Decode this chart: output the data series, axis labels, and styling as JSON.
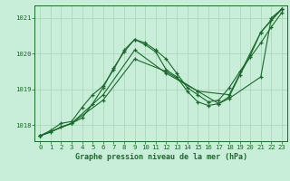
{
  "title": "Graphe pression niveau de la mer (hPa)",
  "background_color": "#c8edd8",
  "grid_color": "#a8d4b8",
  "line_color": "#1a6b2a",
  "xlim": [
    -0.5,
    23.5
  ],
  "ylim": [
    1017.55,
    1021.35
  ],
  "yticks": [
    1018,
    1019,
    1020,
    1021
  ],
  "xticks": [
    0,
    1,
    2,
    3,
    4,
    5,
    6,
    7,
    8,
    9,
    10,
    11,
    12,
    13,
    14,
    15,
    16,
    17,
    18,
    19,
    20,
    21,
    22,
    23
  ],
  "lines": [
    {
      "x": [
        0,
        1,
        2,
        3,
        4,
        5,
        6,
        7,
        8,
        9,
        10,
        11,
        12,
        13,
        14,
        15,
        16,
        17,
        18,
        19,
        20,
        21,
        22,
        23
      ],
      "y": [
        1017.7,
        1017.85,
        1018.05,
        1018.1,
        1018.5,
        1018.85,
        1019.1,
        1019.55,
        1020.1,
        1020.4,
        1020.25,
        1020.05,
        1019.55,
        1019.35,
        1018.95,
        1018.65,
        1018.55,
        1018.6,
        1018.8,
        1019.4,
        1019.95,
        1020.6,
        1020.95,
        1021.25
      ]
    },
    {
      "x": [
        0,
        1,
        2,
        3,
        4,
        5,
        6,
        7,
        8,
        9,
        10,
        11,
        12,
        13,
        14,
        15,
        16,
        17,
        18,
        19,
        20,
        21,
        22,
        23
      ],
      "y": [
        1017.7,
        1017.8,
        1017.95,
        1018.05,
        1018.2,
        1018.6,
        1019.05,
        1019.6,
        1020.05,
        1020.4,
        1020.3,
        1020.1,
        1019.85,
        1019.45,
        1019.05,
        1018.85,
        1018.65,
        1018.7,
        1019.05,
        1019.5,
        1019.9,
        1020.3,
        1020.75,
        1021.15
      ]
    },
    {
      "x": [
        0,
        3,
        6,
        9,
        12,
        15,
        18,
        21,
        23
      ],
      "y": [
        1017.7,
        1018.05,
        1018.85,
        1020.1,
        1019.45,
        1018.95,
        1018.85,
        1020.6,
        1021.25
      ]
    },
    {
      "x": [
        0,
        3,
        6,
        9,
        12,
        15,
        17,
        18,
        21,
        22,
        23
      ],
      "y": [
        1017.7,
        1018.05,
        1018.7,
        1019.85,
        1019.5,
        1018.95,
        1018.6,
        1018.75,
        1019.35,
        1021.0,
        1021.25
      ]
    }
  ]
}
